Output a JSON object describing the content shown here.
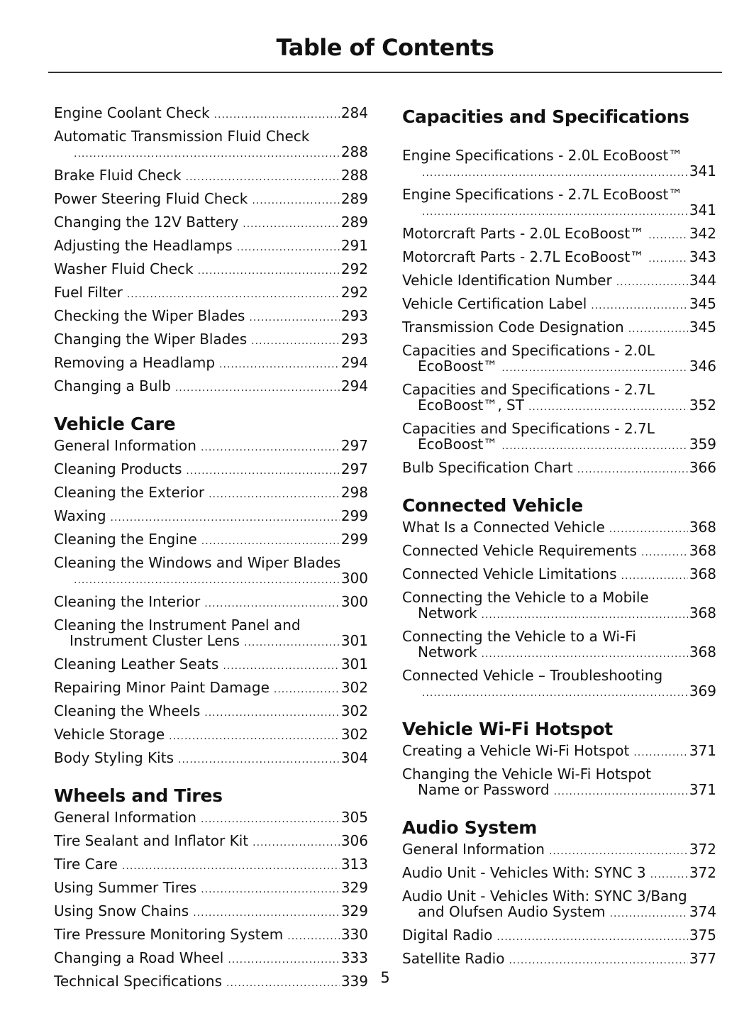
{
  "title": "Table of Contents",
  "page_number": "5",
  "columns": [
    [
      {
        "type": "entry",
        "title": "Engine Coolant Check",
        "page": "284"
      },
      {
        "type": "entry",
        "title": "Automatic Transmission Fluid Check",
        "cont": "",
        "page": "288",
        "wrap": true
      },
      {
        "type": "entry",
        "title": "Brake Fluid Check",
        "page": "288"
      },
      {
        "type": "entry",
        "title": "Power Steering Fluid Check",
        "page": "289"
      },
      {
        "type": "entry",
        "title": "Changing the 12V Battery",
        "page": "289"
      },
      {
        "type": "entry",
        "title": "Adjusting the Headlamps",
        "page": "291"
      },
      {
        "type": "entry",
        "title": "Washer Fluid Check",
        "page": "292"
      },
      {
        "type": "entry",
        "title": "Fuel Filter",
        "page": "292"
      },
      {
        "type": "entry",
        "title": "Checking the Wiper Blades",
        "page": "293"
      },
      {
        "type": "entry",
        "title": "Changing the Wiper Blades",
        "page": "293"
      },
      {
        "type": "entry",
        "title": "Removing a Headlamp",
        "page": "294"
      },
      {
        "type": "entry",
        "title": "Changing a Bulb",
        "page": "294"
      },
      {
        "type": "heading",
        "title": "Vehicle Care"
      },
      {
        "type": "entry",
        "title": "General Information",
        "page": "297"
      },
      {
        "type": "entry",
        "title": "Cleaning Products",
        "page": "297"
      },
      {
        "type": "entry",
        "title": "Cleaning the Exterior",
        "page": "298"
      },
      {
        "type": "entry",
        "title": "Waxing",
        "page": "299"
      },
      {
        "type": "entry",
        "title": "Cleaning the Engine",
        "page": "299"
      },
      {
        "type": "entry",
        "title": "Cleaning the Windows and Wiper Blades",
        "cont": "",
        "page": "300",
        "wrap": true
      },
      {
        "type": "entry",
        "title": "Cleaning the Interior",
        "page": "300"
      },
      {
        "type": "entry",
        "title": "Cleaning the Instrument Panel and",
        "cont": "Instrument Cluster Lens",
        "page": "301",
        "wrap": true
      },
      {
        "type": "entry",
        "title": "Cleaning Leather Seats",
        "page": "301"
      },
      {
        "type": "entry",
        "title": "Repairing Minor Paint Damage",
        "page": "302"
      },
      {
        "type": "entry",
        "title": "Cleaning the Wheels",
        "page": "302"
      },
      {
        "type": "entry",
        "title": "Vehicle Storage",
        "page": "302"
      },
      {
        "type": "entry",
        "title": "Body Styling Kits",
        "page": "304"
      },
      {
        "type": "heading",
        "title": "Wheels and Tires"
      },
      {
        "type": "entry",
        "title": "General Information",
        "page": "305"
      },
      {
        "type": "entry",
        "title": "Tire Sealant and Inflator Kit",
        "page": "306"
      },
      {
        "type": "entry",
        "title": "Tire Care",
        "page": "313"
      },
      {
        "type": "entry",
        "title": "Using Summer Tires",
        "page": "329"
      },
      {
        "type": "entry",
        "title": "Using Snow Chains",
        "page": "329"
      },
      {
        "type": "entry",
        "title": "Tire Pressure Monitoring System",
        "page": "330"
      },
      {
        "type": "entry",
        "title": "Changing a Road Wheel",
        "page": "333"
      },
      {
        "type": "entry",
        "title": "Technical Specifications",
        "page": "339"
      }
    ],
    [
      {
        "type": "heading",
        "title": "Capacities and Specifications",
        "first": true
      },
      {
        "type": "entry",
        "title": "Engine Specifications - 2.0L EcoBoost™",
        "cont": "",
        "page": "341",
        "wrap": true
      },
      {
        "type": "entry",
        "title": "Engine Specifications - 2.7L EcoBoost™",
        "cont": "",
        "page": "341",
        "wrap": true
      },
      {
        "type": "entry",
        "title": "Motorcraft Parts - 2.0L EcoBoost™",
        "page": "342"
      },
      {
        "type": "entry",
        "title": "Motorcraft Parts - 2.7L EcoBoost™",
        "page": "343"
      },
      {
        "type": "entry",
        "title": "Vehicle Identification Number",
        "page": "344"
      },
      {
        "type": "entry",
        "title": "Vehicle Certification Label",
        "page": "345"
      },
      {
        "type": "entry",
        "title": "Transmission Code Designation",
        "page": "345"
      },
      {
        "type": "entry",
        "title": "Capacities and Specifications - 2.0L",
        "cont": "EcoBoost™",
        "page": "346",
        "wrap": true
      },
      {
        "type": "entry",
        "title": "Capacities and Specifications - 2.7L",
        "cont": "EcoBoost™, ST",
        "page": "352",
        "wrap": true
      },
      {
        "type": "entry",
        "title": "Capacities and Specifications - 2.7L",
        "cont": "EcoBoost™",
        "page": "359",
        "wrap": true
      },
      {
        "type": "entry",
        "title": "Bulb Specification Chart",
        "page": "366"
      },
      {
        "type": "heading",
        "title": "Connected Vehicle"
      },
      {
        "type": "entry",
        "title": "What Is a Connected Vehicle",
        "page": "368"
      },
      {
        "type": "entry",
        "title": "Connected Vehicle Requirements",
        "page": "368"
      },
      {
        "type": "entry",
        "title": "Connected Vehicle Limitations",
        "page": "368"
      },
      {
        "type": "entry",
        "title": "Connecting the Vehicle to a Mobile",
        "cont": "Network",
        "page": "368",
        "wrap": true
      },
      {
        "type": "entry",
        "title": "Connecting the Vehicle to a Wi-Fi",
        "cont": "Network",
        "page": "368",
        "wrap": true
      },
      {
        "type": "entry",
        "title": "Connected Vehicle – Troubleshooting",
        "cont": "",
        "page": "369",
        "wrap": true
      },
      {
        "type": "heading",
        "title": "Vehicle Wi-Fi Hotspot"
      },
      {
        "type": "entry",
        "title": "Creating a Vehicle Wi-Fi Hotspot",
        "page": "371"
      },
      {
        "type": "entry",
        "title": "Changing the Vehicle Wi-Fi Hotspot",
        "cont": "Name or Password",
        "page": "371",
        "wrap": true
      },
      {
        "type": "heading",
        "title": "Audio System"
      },
      {
        "type": "entry",
        "title": "General Information",
        "page": "372"
      },
      {
        "type": "entry",
        "title": "Audio Unit - Vehicles With: SYNC 3",
        "page": "372"
      },
      {
        "type": "entry",
        "title": "Audio Unit - Vehicles With: SYNC 3/Bang",
        "cont": "and Olufsen Audio System",
        "page": "374",
        "wrap": true
      },
      {
        "type": "entry",
        "title": "Digital Radio",
        "page": "375"
      },
      {
        "type": "entry",
        "title": "Satellite Radio",
        "page": "377"
      }
    ]
  ]
}
